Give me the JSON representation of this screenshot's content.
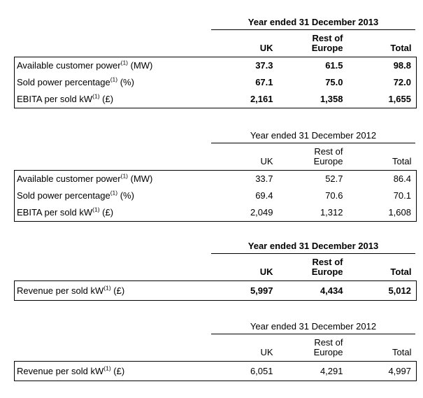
{
  "page": {
    "background": "#ffffff",
    "text_color": "#000000",
    "border_color": "#000000"
  },
  "tables": [
    {
      "id": "kpi-2013",
      "period_header": "Year ended 31 December 2013",
      "emphasis": "bold",
      "columns": {
        "col1": "UK",
        "col2_line1": "Rest of",
        "col2_line2": "Europe",
        "col3": "Total"
      },
      "rows": [
        {
          "label": "Available customer power",
          "footnote": "(1)",
          "unit": " (MW)",
          "uk": "37.3",
          "europe": "61.5",
          "total": "98.8"
        },
        {
          "label": "Sold power percentage",
          "footnote": "(1)",
          "unit": " (%)",
          "uk": "67.1",
          "europe": "75.0",
          "total": "72.0"
        },
        {
          "label": "EBITA per sold kW",
          "footnote": "(1)",
          "unit": " (£)",
          "uk": "2,161",
          "europe": "1,358",
          "total": "1,655"
        }
      ]
    },
    {
      "id": "kpi-2012",
      "period_header": "Year ended 31 December 2012",
      "emphasis": "regular",
      "columns": {
        "col1": "UK",
        "col2_line1": "Rest of",
        "col2_line2": "Europe",
        "col3": "Total"
      },
      "rows": [
        {
          "label": "Available customer power",
          "footnote": "(1)",
          "unit": " (MW)",
          "uk": "33.7",
          "europe": "52.7",
          "total": "86.4"
        },
        {
          "label": "Sold power percentage",
          "footnote": "(1)",
          "unit": " (%)",
          "uk": "69.4",
          "europe": "70.6",
          "total": "70.1"
        },
        {
          "label": "EBITA per sold kW",
          "footnote": "(1)",
          "unit": " (£)",
          "uk": "2,049",
          "europe": "1,312",
          "total": "1,608"
        }
      ]
    },
    {
      "id": "revenue-2013",
      "period_header": "Year ended 31 December 2013",
      "emphasis": "bold",
      "columns": {
        "col1": "UK",
        "col2_line1": "Rest of",
        "col2_line2": "Europe",
        "col3": "Total"
      },
      "rows": [
        {
          "label": "Revenue per sold kW",
          "footnote": "(1)",
          "unit": " (£)",
          "uk": "5,997",
          "europe": "4,434",
          "total": "5,012"
        }
      ]
    },
    {
      "id": "revenue-2012",
      "period_header": "Year ended 31 December 2012",
      "emphasis": "regular",
      "columns": {
        "col1": "UK",
        "col2_line1": "Rest of",
        "col2_line2": "Europe",
        "col3": "Total"
      },
      "rows": [
        {
          "label": "Revenue per sold kW",
          "footnote": "(1)",
          "unit": " (£)",
          "uk": "6,051",
          "europe": "4,291",
          "total": "4,997"
        }
      ]
    }
  ]
}
